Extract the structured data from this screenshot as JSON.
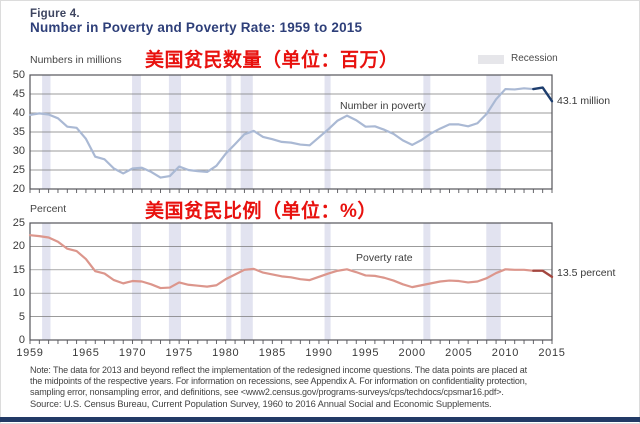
{
  "header": {
    "figure_label": "Figure 4.",
    "title": "Number in Poverty and Poverty Rate: 1959 to 2015"
  },
  "overlays": {
    "top_annotation": "美国贫民数量（单位：百万）",
    "bottom_annotation": "美国贫民比例（单位：%）",
    "annotation_color": "#e8110e"
  },
  "legend": {
    "label": "Recession",
    "swatch_color": "#e6e6ea"
  },
  "colors": {
    "recession_band": "#e2e3f0",
    "gridline": "#7a7a7a",
    "box_border": "#55555a",
    "bottom_bar": "#223a66"
  },
  "chart_data": [
    {
      "type": "line",
      "axis_label": "Numbers in millions",
      "series_label": "Number in poverty",
      "end_label": "43.1 million",
      "x_start": 1959,
      "x_end": 2015,
      "ylim": [
        20,
        50
      ],
      "yticks": [
        50,
        45,
        40,
        35,
        30,
        25,
        20
      ],
      "x_tick_labels": [
        1959,
        1965,
        1970,
        1975,
        1980,
        1985,
        1990,
        1995,
        2000,
        2005,
        2010,
        2015
      ],
      "show_x_tick_labels": false,
      "line_color": "#aab9d4",
      "recent_color": "#1d3d6d",
      "recent_start_year": 2013,
      "values": [
        39.5,
        39.9,
        39.6,
        38.6,
        36.4,
        36.1,
        33.2,
        28.5,
        27.8,
        25.4,
        24.1,
        25.4,
        25.6,
        24.5,
        23.0,
        23.4,
        25.9,
        25.0,
        24.7,
        24.5,
        26.1,
        29.3,
        31.8,
        34.4,
        35.3,
        33.7,
        33.1,
        32.4,
        32.2,
        31.7,
        31.5,
        33.6,
        35.7,
        38.0,
        39.3,
        38.1,
        36.4,
        36.5,
        35.6,
        34.5,
        32.8,
        31.6,
        32.9,
        34.6,
        35.9,
        37.0,
        37.0,
        36.5,
        37.3,
        39.8,
        43.6,
        46.3,
        46.2,
        46.5,
        46.3,
        46.7,
        43.1
      ]
    },
    {
      "type": "line",
      "axis_label": "Percent",
      "series_label": "Poverty rate",
      "end_label": "13.5 percent",
      "x_start": 1959,
      "x_end": 2015,
      "ylim": [
        0,
        25
      ],
      "yticks": [
        25,
        20,
        15,
        10,
        5,
        0
      ],
      "x_tick_labels": [
        1959,
        1965,
        1970,
        1975,
        1980,
        1985,
        1990,
        1995,
        2000,
        2005,
        2010,
        2015
      ],
      "show_x_tick_labels": true,
      "line_color": "#dc968c",
      "recent_color": "#a3463f",
      "recent_start_year": 2013,
      "values": [
        22.4,
        22.2,
        21.9,
        21.0,
        19.5,
        19.0,
        17.3,
        14.7,
        14.2,
        12.8,
        12.1,
        12.6,
        12.5,
        11.9,
        11.1,
        11.2,
        12.3,
        11.8,
        11.6,
        11.4,
        11.7,
        13.0,
        14.0,
        15.0,
        15.2,
        14.4,
        14.0,
        13.6,
        13.4,
        13.0,
        12.8,
        13.5,
        14.2,
        14.8,
        15.1,
        14.5,
        13.8,
        13.7,
        13.3,
        12.7,
        11.9,
        11.3,
        11.7,
        12.1,
        12.5,
        12.7,
        12.6,
        12.3,
        12.5,
        13.2,
        14.3,
        15.1,
        15.0,
        15.0,
        14.8,
        14.8,
        13.5
      ]
    }
  ],
  "recessions": [
    [
      1960.3,
      1961.2
    ],
    [
      1969.95,
      1970.9
    ],
    [
      1973.9,
      1975.2
    ],
    [
      1980.05,
      1980.6
    ],
    [
      1981.6,
      1982.9
    ],
    [
      1990.6,
      1991.25
    ],
    [
      2001.2,
      2001.95
    ],
    [
      2007.95,
      2009.5
    ]
  ],
  "footer": {
    "note_lines": [
      "Note: The data for 2013 and beyond reflect the implementation of the redesigned income questions. The data points are placed at",
      "the midpoints of the respective years. For information on recessions, see Appendix A. For information on confidentiality protection,",
      "sampling error, nonsampling error, and definitions, see <www2.census.gov/programs-surveys/cps/techdocs/cpsmar16.pdf>."
    ],
    "source": "Source: U.S. Census Bureau, Current Population Survey, 1960 to 2016 Annual Social and Economic Supplements."
  }
}
